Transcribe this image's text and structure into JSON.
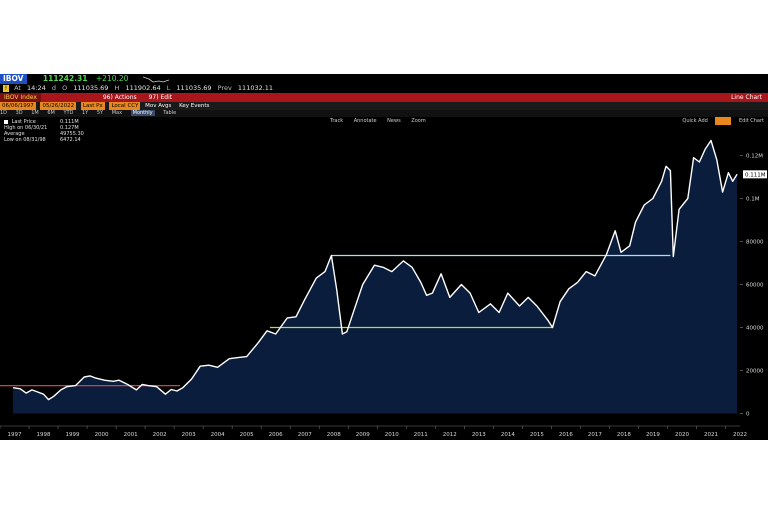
{
  "quote_bar": {
    "ticker": "IBOV",
    "last": "111242.31",
    "change": "+210.20"
  },
  "time_bar": {
    "at_label": "At",
    "time": "14:24",
    "d": "d",
    "open_label": "O",
    "open": "111035.69",
    "high_label": "H",
    "high": "111902.64",
    "low_label": "L",
    "low": "111035.69",
    "prev_label": "Prev",
    "prev": "111032.11"
  },
  "menu_bar": {
    "security": "IBOV Index",
    "actions": "96) Actions",
    "edit": "97) Edit",
    "title": "Line Chart"
  },
  "params": {
    "start_date": "06/06/1997",
    "end_date": "05/26/2022",
    "field": "Last Px",
    "currency": "Local CCY",
    "mov_avgs": "Mov Avgs",
    "key_events": "Key Events"
  },
  "periods": [
    "1D",
    "3D",
    "1M",
    "6M",
    "YTD",
    "1Y",
    "5Y",
    "Max",
    "Monthly",
    "Table"
  ],
  "selected_period": "Monthly",
  "tools": {
    "track": "Track",
    "annotate": "Annotate",
    "news": "News",
    "zoom": "Zoom",
    "quick_add": "Quick Add",
    "edit_chart": "Edit Chart"
  },
  "legend": [
    {
      "label": "Last Price",
      "value": "0.111M"
    },
    {
      "label": "High on 06/30/21",
      "value": "0.127M"
    },
    {
      "label": "Average",
      "value": "49755.30"
    },
    {
      "label": "Low on 08/31/98",
      "value": "6472.14"
    }
  ],
  "colors": {
    "background": "#000000",
    "fill": "#0b1d3d",
    "line": "#ffffff",
    "red_line": "#e23b3b",
    "green_line": "#a8e05a",
    "cyan_line": "#9fe6ef",
    "up_green": "#4fd64f",
    "menu_red": "#a8161c",
    "orange_box": "#e8871e"
  },
  "chart_data": {
    "type": "area",
    "y_tick_labels": [
      "0",
      "20000",
      "40000",
      "60000",
      "80000",
      "0.1M",
      "0.12M"
    ],
    "y_ticks": [
      0,
      20000,
      40000,
      60000,
      80000,
      100000,
      120000
    ],
    "ylim": [
      -3000,
      130000
    ],
    "x_tick_labels": [
      "1997",
      "1998",
      "1999",
      "2000",
      "2001",
      "2002",
      "2003",
      "2004",
      "2005",
      "2006",
      "2007",
      "2008",
      "2009",
      "2010",
      "2011",
      "2012",
      "2013",
      "2014",
      "2015",
      "2016",
      "2017",
      "2018",
      "2019",
      "2020",
      "2021",
      "2022"
    ],
    "xlim": [
      1997.0,
      2022.5
    ],
    "last_value_label": "0.111M",
    "grid": false,
    "legend_position": "top-left",
    "series": [
      {
        "x": [
          1997.45,
          1997.7,
          1997.9,
          1998.1,
          1998.3,
          1998.5,
          1998.67,
          1998.85,
          1999.1,
          1999.3,
          1999.6,
          1999.9,
          2000.1,
          2000.3,
          2000.6,
          2000.9,
          2001.1,
          2001.4,
          2001.7,
          2001.9,
          2002.1,
          2002.4,
          2002.7,
          2002.9,
          2003.1,
          2003.3,
          2003.6,
          2003.9,
          2004.2,
          2004.5,
          2004.9,
          2005.2,
          2005.5,
          2005.9,
          2006.2,
          2006.5,
          2006.9,
          2007.2,
          2007.5,
          2007.9,
          2008.2,
          2008.42,
          2008.6,
          2008.8,
          2008.95,
          2009.2,
          2009.5,
          2009.9,
          2010.2,
          2010.5,
          2010.9,
          2011.2,
          2011.5,
          2011.7,
          2011.9,
          2012.2,
          2012.5,
          2012.9,
          2013.2,
          2013.5,
          2013.9,
          2014.2,
          2014.5,
          2014.9,
          2015.2,
          2015.5,
          2015.9,
          2016.04,
          2016.3,
          2016.6,
          2016.9,
          2017.2,
          2017.5,
          2017.9,
          2018.2,
          2018.4,
          2018.7,
          2018.9,
          2019.2,
          2019.5,
          2019.8,
          2019.95,
          2020.1,
          2020.2,
          2020.4,
          2020.7,
          2020.9,
          2021.1,
          2021.3,
          2021.5,
          2021.7,
          2021.9,
          2022.1,
          2022.25,
          2022.4
        ],
        "values": [
          12000,
          11500,
          9500,
          11000,
          10000,
          9000,
          6472,
          8000,
          11000,
          12500,
          13000,
          17000,
          17500,
          16500,
          15500,
          15000,
          15500,
          13500,
          11000,
          13500,
          13000,
          12500,
          9000,
          11200,
          10500,
          12000,
          16000,
          22000,
          22500,
          21500,
          25500,
          26000,
          26500,
          33000,
          38500,
          37000,
          44500,
          45000,
          53000,
          63000,
          66000,
          73500,
          58000,
          37000,
          38000,
          48000,
          60000,
          69000,
          68000,
          66000,
          71000,
          68000,
          61000,
          55000,
          56000,
          65000,
          54000,
          60000,
          56000,
          47000,
          51000,
          47000,
          56000,
          50000,
          54000,
          50000,
          43000,
          40000,
          52000,
          58000,
          61000,
          66000,
          64000,
          74000,
          85000,
          75000,
          78000,
          89000,
          97000,
          100000,
          108000,
          115000,
          113000,
          73000,
          95000,
          100000,
          119000,
          117000,
          123000,
          127000,
          118000,
          103000,
          112000,
          108000,
          111242
        ]
      }
    ],
    "reference_lines": [
      {
        "color": "red",
        "x_from": 1997.0,
        "x_to": 2003.2,
        "y": 13000
      },
      {
        "color": "green",
        "x_from": 2006.3,
        "x_to": 2016.04,
        "y": 40000
      },
      {
        "color": "cyan",
        "x_from": 2008.42,
        "x_to": 2020.1,
        "y": 73500
      }
    ]
  }
}
